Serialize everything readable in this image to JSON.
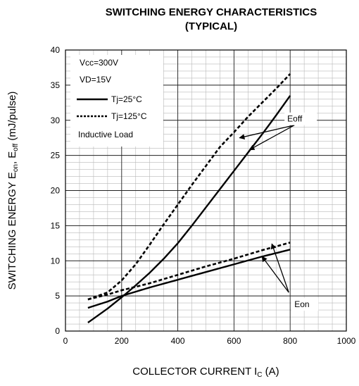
{
  "chart_data": {
    "type": "line",
    "title_line1": "SWITCHING ENERGY CHARACTERISTICS",
    "title_line2": "(TYPICAL)",
    "xlabel": "COLLECTOR CURRENT I",
    "xlabel_sub": "C",
    "xlabel_unit": " (A)",
    "ylabel_parts": [
      "SWITCHING ENERGY E",
      "on",
      ", E",
      "off",
      " (mJ/pulse)"
    ],
    "xlim": [
      0,
      1000
    ],
    "ylim": [
      0,
      40
    ],
    "xticks": [
      0,
      200,
      400,
      600,
      800,
      1000
    ],
    "yticks": [
      0,
      5,
      10,
      15,
      20,
      25,
      30,
      35,
      40
    ],
    "grid": true,
    "legend_placement": "top-left",
    "legend_lines": [
      "Vcc=300V",
      "VD=15V",
      "Tj=25°C",
      "Tj=125°C",
      "Inductive Load"
    ],
    "series": [
      {
        "name": "Tj=25°C",
        "curve": "Eoff",
        "style": "solid",
        "x": [
          80,
          150,
          200,
          250,
          300,
          350,
          400,
          450,
          500,
          550,
          600,
          650,
          700,
          750,
          800
        ],
        "y": [
          1.2,
          3.2,
          4.8,
          6.5,
          8.3,
          10.3,
          12.5,
          15.0,
          17.6,
          20.2,
          22.8,
          25.4,
          28.0,
          30.7,
          33.5
        ]
      },
      {
        "name": "Tj=125°C",
        "curve": "Eoff",
        "style": "dashed",
        "x": [
          80,
          150,
          200,
          250,
          300,
          350,
          400,
          450,
          500,
          550,
          600,
          650,
          700,
          750,
          800
        ],
        "y": [
          4.5,
          5.5,
          7.2,
          9.5,
          12.3,
          15.2,
          18.0,
          20.8,
          23.5,
          26.2,
          28.3,
          30.5,
          32.5,
          34.5,
          36.6
        ]
      },
      {
        "name": "Tj=25°C",
        "curve": "Eon",
        "style": "solid",
        "x": [
          80,
          150,
          200,
          300,
          400,
          500,
          600,
          700,
          800
        ],
        "y": [
          3.3,
          4.2,
          5.0,
          6.2,
          7.3,
          8.4,
          9.5,
          10.6,
          11.6
        ]
      },
      {
        "name": "Tj=125°C",
        "curve": "Eon",
        "style": "dashed",
        "x": [
          80,
          150,
          200,
          300,
          400,
          500,
          600,
          700,
          800
        ],
        "y": [
          4.5,
          5.2,
          5.8,
          6.8,
          8.0,
          9.2,
          10.3,
          11.5,
          12.6
        ]
      }
    ],
    "annotations": [
      {
        "text": "Eoff",
        "pointer_origin": [
          815,
          29.3
        ],
        "points_to": [
          [
            620,
            27.5
          ],
          [
            655,
            25.8
          ]
        ]
      },
      {
        "text": "Eon",
        "pointer_origin": [
          795,
          5.5
        ],
        "points_to": [
          [
            700,
            10.6
          ],
          [
            735,
            12.4
          ]
        ]
      }
    ]
  }
}
